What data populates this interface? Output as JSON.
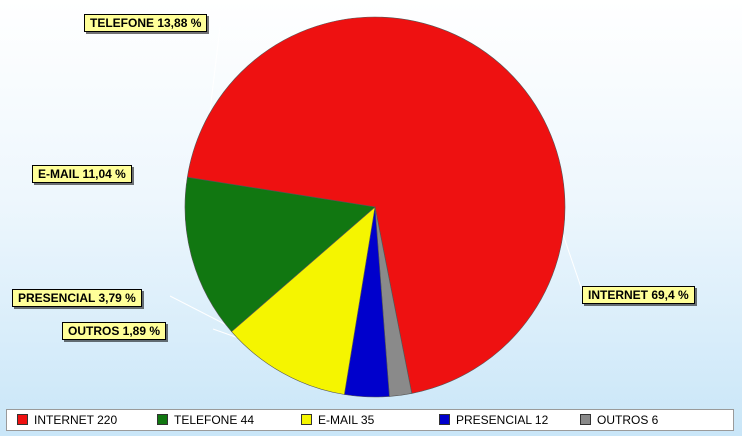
{
  "chart_data": {
    "type": "pie",
    "title": "",
    "slices": [
      {
        "name": "INTERNET",
        "value": 220,
        "percent_label": "INTERNET 69,4 %",
        "legend_label": "INTERNET 220",
        "color": "#ee1111"
      },
      {
        "name": "OUTROS",
        "value": 6,
        "percent_label": "OUTROS 1,89 %",
        "legend_label": "OUTROS 6",
        "color": "#8a8a8a"
      },
      {
        "name": "PRESENCIAL",
        "value": 12,
        "percent_label": "PRESENCIAL 3,79 %",
        "legend_label": "PRESENCIAL 12",
        "color": "#0000cc"
      },
      {
        "name": "E-MAIL",
        "value": 35,
        "percent_label": "E-MAIL 11,04 %",
        "legend_label": "E-MAIL 35",
        "color": "#f5f500"
      },
      {
        "name": "TELEFONE",
        "value": 44,
        "percent_label": "TELEFONE 13,88 %",
        "legend_label": "TELEFONE 44",
        "color": "#117711"
      }
    ],
    "legend": {
      "placement": "bottom",
      "entries": [
        "INTERNET 220",
        "TELEFONE 44",
        "E-MAIL 35",
        "PRESENCIAL 12",
        "OUTROS 6"
      ]
    }
  }
}
